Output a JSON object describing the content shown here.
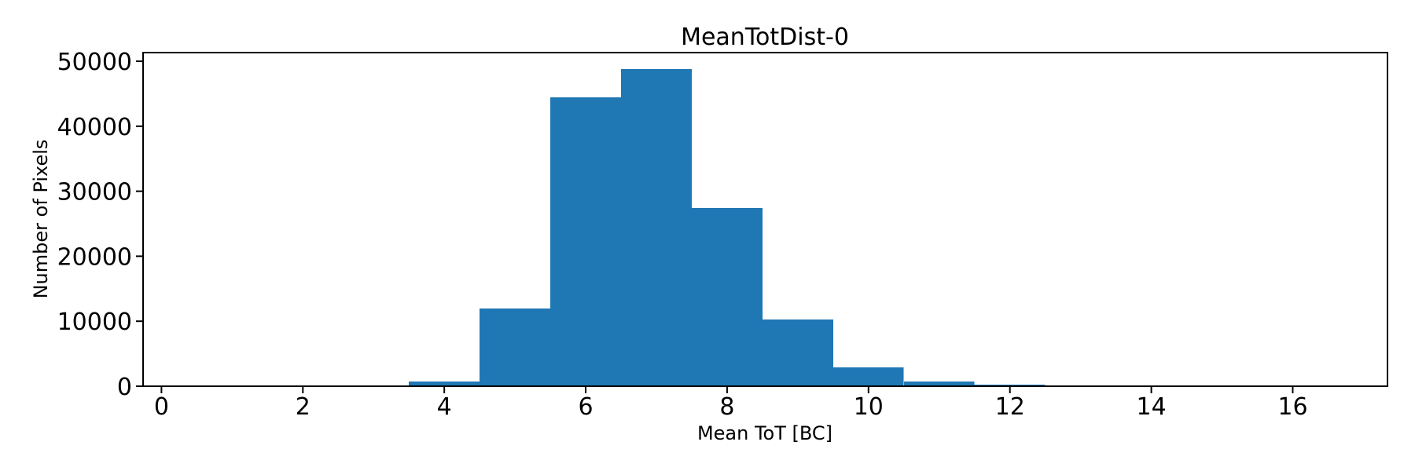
{
  "chart_data": {
    "type": "bar",
    "subtype": "histogram",
    "title": "MeanTotDist-0",
    "xlabel": "Mean ToT [BC]",
    "ylabel": "Number of Pixels",
    "bin_edges": [
      3.5,
      4.5,
      5.5,
      6.5,
      7.5,
      8.5,
      9.5,
      10.5,
      11.5,
      12.5,
      13.5
    ],
    "counts": [
      725,
      11950,
      44450,
      48800,
      27400,
      10250,
      2900,
      725,
      250,
      150
    ],
    "xticks": [
      0,
      2,
      4,
      6,
      8,
      10,
      12,
      14,
      16
    ],
    "yticks": [
      0,
      10000,
      20000,
      30000,
      40000,
      50000
    ],
    "xlim": [
      -0.26,
      17.34
    ],
    "ylim": [
      0,
      51330
    ],
    "bar_color": "#1f77b4",
    "axis_color": "#000000",
    "background_color": "#ffffff",
    "grid": false,
    "legend": false
  }
}
